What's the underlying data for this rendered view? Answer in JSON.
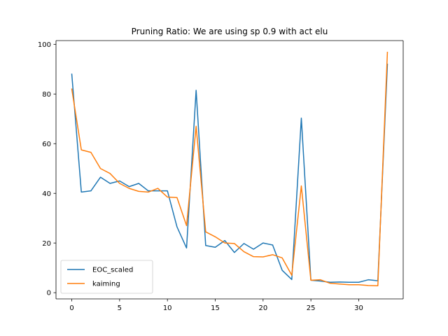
{
  "chart_data": {
    "type": "line",
    "title": "Pruning Ratio: We are using sp 0.9 with act elu",
    "xlabel": "",
    "ylabel": "",
    "xlim": [
      -1.65,
      34.65
    ],
    "ylim": [
      -2.5,
      101.5
    ],
    "xticks": [
      0,
      5,
      10,
      15,
      20,
      25,
      30
    ],
    "yticks": [
      0,
      20,
      40,
      60,
      80,
      100
    ],
    "grid": false,
    "legend": "lower-left",
    "x": [
      0,
      1,
      2,
      3,
      4,
      5,
      6,
      7,
      8,
      9,
      10,
      11,
      12,
      13,
      14,
      15,
      16,
      17,
      18,
      19,
      20,
      21,
      22,
      23,
      24,
      25,
      26,
      27,
      28,
      29,
      30,
      31,
      32,
      33
    ],
    "series": [
      {
        "name": "EOC_scaled",
        "color": "#1f77b4",
        "values": [
          88,
          40.5,
          41,
          46.5,
          44,
          45,
          42.7,
          44,
          41,
          41,
          41,
          26.5,
          18,
          81.5,
          19,
          18.3,
          21,
          16.2,
          19.8,
          17.5,
          20,
          19.2,
          9,
          5.3,
          70.3,
          5,
          4.7,
          4.2,
          4.3,
          4.2,
          4.2,
          5.2,
          4.8,
          92
        ]
      },
      {
        "name": "kaiming",
        "color": "#ff7f0e",
        "values": [
          82,
          57.5,
          56.5,
          50,
          48,
          44,
          42,
          40.8,
          40.5,
          42,
          38.5,
          38.3,
          27,
          67,
          24.5,
          22.5,
          20,
          19.8,
          16.5,
          14.5,
          14.4,
          15.3,
          14,
          7,
          43,
          5,
          5.2,
          3.8,
          3.5,
          3.2,
          3.2,
          2.9,
          2.8,
          96.8
        ]
      }
    ]
  }
}
